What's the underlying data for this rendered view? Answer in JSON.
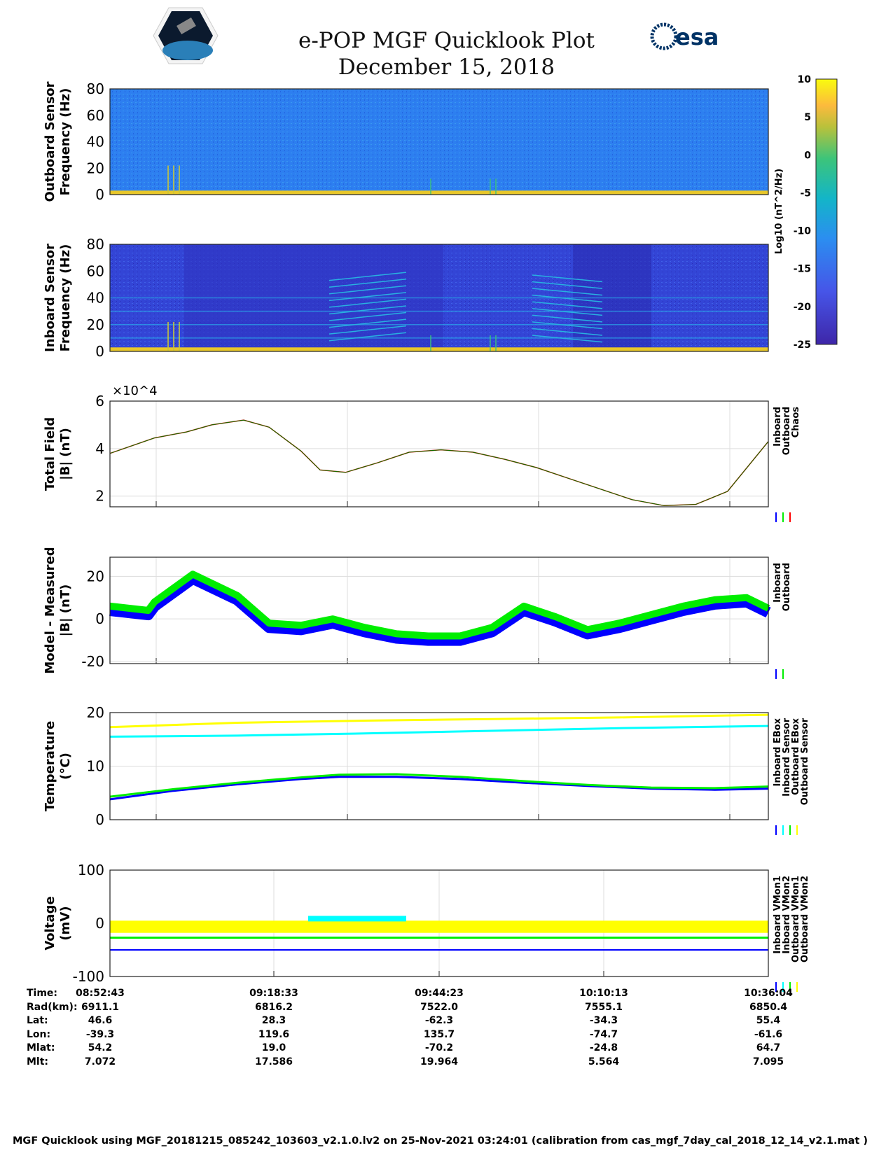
{
  "header": {
    "title": "e-POP MGF Quicklook Plot",
    "date": "December 15, 2018",
    "logo_left": "CASSIOPE",
    "logo_right": "esa"
  },
  "chart_data": [
    {
      "type": "heatmap",
      "name": "outboard-spectrogram",
      "ylabel": [
        "Outboard Sensor",
        "Frequency (Hz)"
      ],
      "ylim": [
        0,
        80
      ],
      "yticks": [
        "80",
        "60",
        "40",
        "20",
        "0"
      ]
    },
    {
      "type": "heatmap",
      "name": "inboard-spectrogram",
      "ylabel": [
        "Inboard Sensor",
        "Frequency (Hz)"
      ],
      "ylim": [
        0,
        80
      ],
      "yticks": [
        "80",
        "60",
        "40",
        "20",
        "0"
      ]
    },
    {
      "type": "colorbar",
      "label": "Log10 (nT^2/Hz)",
      "clim": [
        -25,
        10
      ],
      "ticks": [
        "10",
        "5",
        "0",
        "-5",
        "-10",
        "-15",
        "-20",
        "-25"
      ]
    },
    {
      "type": "line",
      "name": "total-field",
      "ylabel": [
        "Total Field",
        "|B| (nT)"
      ],
      "exponent": "×10^4",
      "ylim": [
        1.55,
        6
      ],
      "yticks": [
        "6",
        "4",
        "2"
      ],
      "legend": [
        "Inboard",
        "Outboard",
        "Chaos"
      ],
      "legend_colors": [
        "#0000ff",
        "#00ee00",
        "#ff0000"
      ],
      "x": [
        0,
        7,
        12,
        16,
        21,
        25,
        30,
        33,
        37,
        42,
        47,
        52,
        57,
        62,
        67,
        72,
        77,
        82,
        87,
        92,
        97,
        103.4
      ],
      "y": [
        3.8,
        4.45,
        4.7,
        5.0,
        5.2,
        4.9,
        3.9,
        3.1,
        3.0,
        3.4,
        3.85,
        3.95,
        3.85,
        3.55,
        3.2,
        2.75,
        2.3,
        1.85,
        1.6,
        1.65,
        2.2,
        4.3
      ]
    },
    {
      "type": "line",
      "name": "model-minus-measured",
      "ylabel": [
        "Model - Measured",
        "|B| (nT)"
      ],
      "ylim": [
        -21,
        29
      ],
      "yticks": [
        "20",
        "0",
        "-20"
      ],
      "legend": [
        "Inboard",
        "Outboard"
      ],
      "legend_colors": [
        "#0000ff",
        "#00ee00"
      ],
      "x": [
        0,
        6,
        7,
        13,
        20,
        25,
        30,
        35,
        40,
        45,
        50,
        55,
        60,
        65,
        70,
        75,
        80,
        85,
        90,
        95,
        100,
        103.4
      ],
      "y": [
        5,
        3,
        7,
        20,
        10,
        -3,
        -4,
        -1,
        -5,
        -8,
        -9,
        -9,
        -5,
        5,
        0,
        -6,
        -3,
        1,
        5,
        8,
        9,
        4
      ]
    },
    {
      "type": "line",
      "name": "temperature",
      "ylabel": [
        "Temperature",
        "(°C)"
      ],
      "ylim": [
        0,
        20
      ],
      "yticks": [
        "20",
        "10",
        "0"
      ],
      "legend": [
        "Inboard EBox",
        "Inboard Sensor",
        "Outboard EBox",
        "Outboard Sensor"
      ],
      "legend_colors": [
        "#0000ff",
        "#00ffff",
        "#00ee00",
        "#ffff00"
      ],
      "series": [
        {
          "name": "Inboard EBox",
          "x": [
            0,
            10,
            20,
            30,
            36,
            45,
            55,
            65,
            75,
            85,
            95,
            103.4
          ],
          "y": [
            3.8,
            5.4,
            6.6,
            7.6,
            8.0,
            8.0,
            7.6,
            6.9,
            6.3,
            5.8,
            5.6,
            5.8
          ]
        },
        {
          "name": "Inboard Sensor",
          "x": [
            0,
            20,
            40,
            60,
            80,
            103.4
          ],
          "y": [
            15.5,
            15.7,
            16.1,
            16.6,
            17.1,
            17.5
          ]
        },
        {
          "name": "Outboard EBox",
          "x": [
            0,
            10,
            20,
            30,
            36,
            45,
            55,
            65,
            75,
            85,
            95,
            103.4
          ],
          "y": [
            4.3,
            5.7,
            6.9,
            7.9,
            8.4,
            8.5,
            8.0,
            7.2,
            6.5,
            6.0,
            5.9,
            6.2
          ]
        },
        {
          "name": "Outboard Sensor",
          "x": [
            0,
            20,
            40,
            60,
            80,
            103.4
          ],
          "y": [
            17.3,
            18.1,
            18.5,
            18.8,
            19.1,
            19.6
          ]
        }
      ]
    },
    {
      "type": "line",
      "name": "voltage",
      "ylabel": [
        "Voltage",
        "(mV)"
      ],
      "ylim": [
        -100,
        100
      ],
      "yticks": [
        "100",
        "0",
        "-100"
      ],
      "legend": [
        "Inboard VMon1",
        "Inboard VMon2",
        "Outboard VMon1",
        "Outboard VMon2"
      ],
      "legend_colors": [
        "#0000ff",
        "#00ffff",
        "#00ee00",
        "#ffff00"
      ],
      "series": [
        {
          "name": "Inboard VMon1",
          "y": -50
        },
        {
          "name": "Inboard VMon2",
          "y": 8
        },
        {
          "name": "Outboard VMon1",
          "y": -27
        },
        {
          "name": "Outboard VMon2",
          "y": -5
        }
      ]
    }
  ],
  "ephemeris": {
    "labels": [
      "Time:",
      "Rad(km):",
      "Lat:",
      "Lon:",
      "Mlat:",
      "Mlt:"
    ],
    "columns": [
      [
        "08:52:43",
        "6911.1",
        "46.6",
        "-39.3",
        "54.2",
        "7.072"
      ],
      [
        "09:18:33",
        "6816.2",
        "28.3",
        "119.6",
        "19.0",
        "17.586"
      ],
      [
        "09:44:23",
        "7522.0",
        "-62.3",
        "135.7",
        "-70.2",
        "19.964"
      ],
      [
        "10:10:13",
        "7555.1",
        "-34.3",
        "-74.7",
        "-24.8",
        "5.564"
      ],
      [
        "10:36:04",
        "6850.4",
        "55.4",
        "-61.6",
        "64.7",
        "7.095"
      ]
    ]
  },
  "footer": "MGF Quicklook using MGF_20181215_085242_103603_v2.1.0.lv2 on 25-Nov-2021 03:24:01 (calibration from cas_mgf_7day_cal_2018_12_14_v2.1.mat )"
}
